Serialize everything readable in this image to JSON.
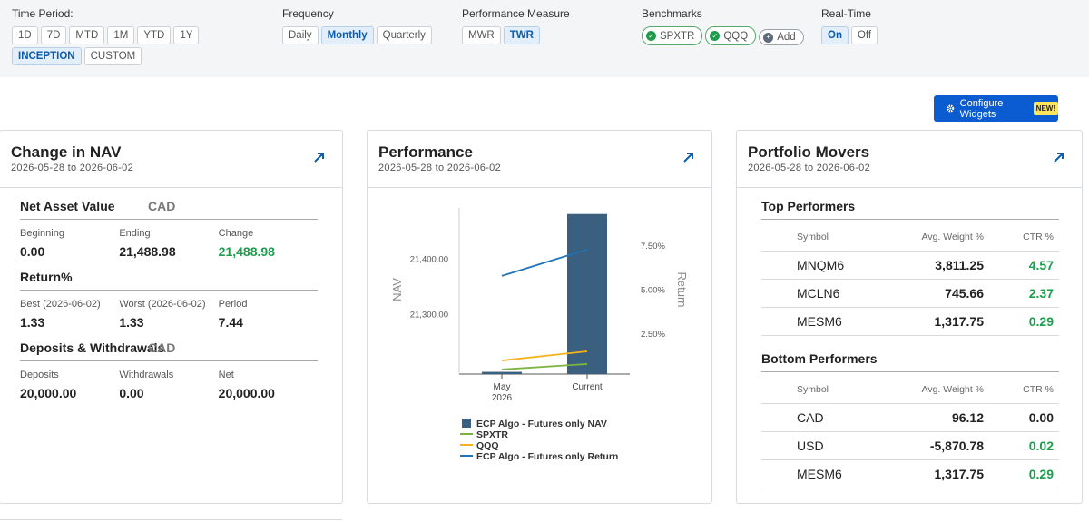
{
  "filters": [
    {
      "label": "Time Period:",
      "options": [
        "1D",
        "7D",
        "MTD",
        "1M",
        "YTD",
        "1Y",
        "INCEPTION",
        "CUSTOM"
      ],
      "selected": 6
    },
    {
      "label": "Frequency",
      "options": [
        "Daily",
        "Monthly",
        "Quarterly"
      ],
      "selected": 1
    },
    {
      "label": "Performance Measure",
      "options": [
        "MWR",
        "TWR"
      ],
      "selected": 1
    },
    {
      "label": "Benchmarks",
      "options": [
        "SPXTR",
        "QQQ"
      ],
      "add": "Add"
    },
    {
      "label": "Real-Time",
      "options": [
        "On",
        "Off"
      ],
      "selected": 0
    }
  ],
  "configure_widgets": {
    "label": "Configure Widgets",
    "badge": "NEW!"
  },
  "nav_widget": {
    "title": "Change in NAV",
    "date_range": "2026-05-28 to 2026-06-02",
    "sections": [
      {
        "title": "Net Asset Value",
        "currency": "CAD",
        "items": [
          {
            "label": "Beginning",
            "value": "0.00"
          },
          {
            "label": "Ending",
            "value": "21,488.98"
          },
          {
            "label": "Change",
            "value": "21,488.98",
            "highlight": true
          }
        ]
      },
      {
        "title": "Return%",
        "items": [
          {
            "label": "Best (2026-06-02)",
            "value": "1.33"
          },
          {
            "label": "Worst (2026-06-02)",
            "value": "1.33"
          },
          {
            "label": "Period",
            "value": "7.44"
          }
        ]
      },
      {
        "title": "Deposits & Withdrawals",
        "currency": "CAD",
        "items": [
          {
            "label": "Deposits",
            "value": "20,000.00"
          },
          {
            "label": "Withdrawals",
            "value": "0.00"
          },
          {
            "label": "Net",
            "value": "20,000.00"
          }
        ]
      }
    ]
  },
  "performance_widget": {
    "title": "Performance",
    "date_range": "2026-05-28 to 2026-06-02",
    "chart_data": {
      "type": "bar",
      "categories": [
        "May 2026",
        "Current"
      ],
      "series": [
        {
          "name": "ECP Algo - Futures only NAV",
          "type": "bar",
          "color": "#3b5f7e",
          "values": [
            21197,
            21482
          ]
        },
        {
          "name": "SPXTR",
          "type": "line",
          "axis": "y2",
          "color": "#7cb342",
          "values": [
            0.49,
            0.8
          ]
        },
        {
          "name": "QQQ",
          "type": "line",
          "axis": "y2",
          "color": "#f5b31a",
          "values": [
            1.0,
            1.52
          ]
        },
        {
          "name": "ECP Algo - Futures only Return",
          "type": "line",
          "axis": "y2",
          "color": "#1f73b7",
          "values": [
            5.8,
            7.3
          ]
        }
      ],
      "y_label": "NAV",
      "y2_label": "Return",
      "ylim": [
        21193,
        21493
      ],
      "yticks": [
        {
          "value": 21300,
          "label": "21,300.00"
        },
        {
          "value": 21400,
          "label": "21,400.00"
        }
      ],
      "y2lim": [
        0.23,
        9.66
      ],
      "y2ticks": [
        {
          "value": 2.5,
          "label": "2.50%"
        },
        {
          "value": 5,
          "label": "5.00%"
        },
        {
          "value": 7.5,
          "label": "7.50%"
        }
      ]
    }
  },
  "movers_widget": {
    "title": "Portfolio Movers",
    "date_range": "2026-05-28 to 2026-06-02",
    "columns": [
      "Symbol",
      "Avg. Weight %",
      "CTR %"
    ],
    "sections": [
      {
        "title": "Top Performers",
        "rows": [
          [
            "MNQM6",
            "3,811.25",
            "4.57"
          ],
          [
            "MCLN6",
            "745.66",
            "2.37"
          ],
          [
            "MESM6",
            "1,317.75",
            "0.29"
          ]
        ]
      },
      {
        "title": "Bottom Performers",
        "rows": [
          [
            "CAD",
            "96.12",
            "0.00"
          ],
          [
            "USD",
            "-5,870.78",
            "0.02"
          ],
          [
            "MESM6",
            "1,317.75",
            "0.29"
          ]
        ]
      }
    ]
  }
}
